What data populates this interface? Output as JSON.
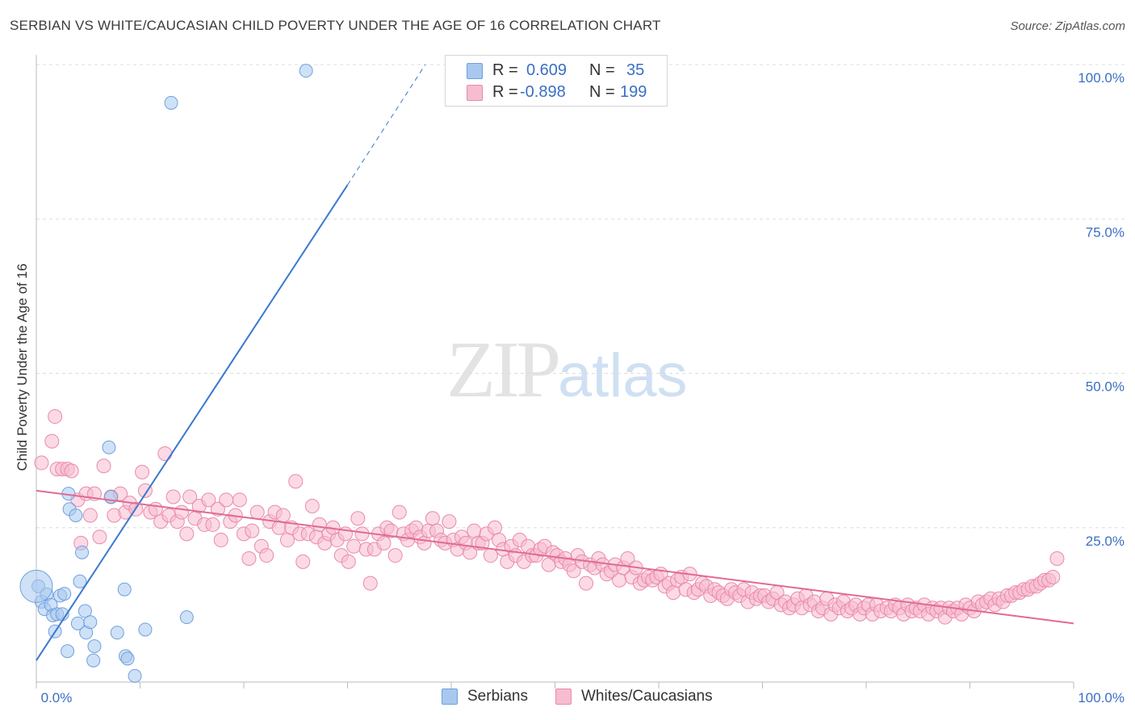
{
  "header": {
    "title": "SERBIAN VS WHITE/CAUCASIAN CHILD POVERTY UNDER THE AGE OF 16 CORRELATION CHART",
    "source": "Source: ZipAtlas.com"
  },
  "watermark": {
    "zip": "ZIP",
    "atlas": "atlas"
  },
  "legend": {
    "rows": [
      {
        "r_label": "R =",
        "r_value": "0.609",
        "n_label": "N =",
        "n_value": "35",
        "color": "#a8c8f0",
        "border": "#6fa0dc"
      },
      {
        "r_label": "R =",
        "r_value": "-0.898",
        "n_label": "N =",
        "n_value": "199",
        "color": "#f7bcd0",
        "border": "#e98aab"
      }
    ]
  },
  "bottom_legend": [
    {
      "label": "Serbians",
      "color": "#a8c8f0",
      "border": "#6fa0dc"
    },
    {
      "label": "Whites/Caucasians",
      "color": "#f7bcd0",
      "border": "#e98aab"
    }
  ],
  "colors": {
    "serbian_fill": "#a8c8f0",
    "serbian_stroke": "#6fa0dc",
    "serbian_line": "#3a78d0",
    "white_fill": "#f7bcd0",
    "white_stroke": "#e98aab",
    "white_line": "#e06a95",
    "tick_label": "#3a6fc4",
    "grid": "#dddddd"
  },
  "chart_data": {
    "type": "scatter",
    "title": "SERBIAN VS WHITE/CAUCASIAN CHILD POVERTY UNDER THE AGE OF 16 CORRELATION CHART",
    "xlabel": "",
    "ylabel": "Child Poverty Under the Age of 16",
    "xlim": [
      0,
      100
    ],
    "ylim": [
      0,
      100
    ],
    "x_tick_labels": [
      "0.0%",
      "100.0%"
    ],
    "y_tick_labels": [
      "25.0%",
      "50.0%",
      "75.0%",
      "100.0%"
    ],
    "y_ticks": [
      25,
      50,
      75,
      100
    ],
    "grid": "horizontal dashed",
    "legend_placement": "top-center",
    "series": [
      {
        "name": "Serbians",
        "r": 0.609,
        "n": 35,
        "trend": {
          "x0": 0,
          "y0": 3.5,
          "x1": 30,
          "y1": 80.5,
          "dashed_to": [
            37.5,
            100
          ]
        },
        "points": [
          [
            0.2,
            15.5
          ],
          [
            0.5,
            13.0
          ],
          [
            0.8,
            11.8
          ],
          [
            1.0,
            14.2
          ],
          [
            1.4,
            12.5
          ],
          [
            1.6,
            10.8
          ],
          [
            2.0,
            11.0
          ],
          [
            2.3,
            14.0
          ],
          [
            1.8,
            8.2
          ],
          [
            2.7,
            14.3
          ],
          [
            2.5,
            11.0
          ],
          [
            3.0,
            5.0
          ],
          [
            3.1,
            30.5
          ],
          [
            3.2,
            28.0
          ],
          [
            3.8,
            27.0
          ],
          [
            4.0,
            9.5
          ],
          [
            4.2,
            16.3
          ],
          [
            4.4,
            21.0
          ],
          [
            4.7,
            11.5
          ],
          [
            4.8,
            8.0
          ],
          [
            5.2,
            9.7
          ],
          [
            5.5,
            3.5
          ],
          [
            5.6,
            5.8
          ],
          [
            7.0,
            38.0
          ],
          [
            7.2,
            30.0
          ],
          [
            7.8,
            8.0
          ],
          [
            8.5,
            15.0
          ],
          [
            8.6,
            4.2
          ],
          [
            8.8,
            3.8
          ],
          [
            9.5,
            1.0
          ],
          [
            10.5,
            8.5
          ],
          [
            13.0,
            93.8
          ],
          [
            14.5,
            10.5
          ],
          [
            26.0,
            99.0
          ],
          [
            0.0,
            15.5
          ]
        ]
      },
      {
        "name": "Whites/Caucasians",
        "r": -0.898,
        "n": 199,
        "trend": {
          "x0": 0,
          "y0": 31.0,
          "x1": 100,
          "y1": 9.5
        },
        "points": [
          [
            0.5,
            35.5
          ],
          [
            1.5,
            39.0
          ],
          [
            1.8,
            43.0
          ],
          [
            2.0,
            34.5
          ],
          [
            2.5,
            34.5
          ],
          [
            3.0,
            34.5
          ],
          [
            3.4,
            34.2
          ],
          [
            4.0,
            29.5
          ],
          [
            4.3,
            22.5
          ],
          [
            4.8,
            30.5
          ],
          [
            5.2,
            27.0
          ],
          [
            5.6,
            30.5
          ],
          [
            6.1,
            23.5
          ],
          [
            6.5,
            35.0
          ],
          [
            7.2,
            30.0
          ],
          [
            7.5,
            27.0
          ],
          [
            8.1,
            30.5
          ],
          [
            8.6,
            27.5
          ],
          [
            9.0,
            29.0
          ],
          [
            9.6,
            28.0
          ],
          [
            10.2,
            34.0
          ],
          [
            10.5,
            31.0
          ],
          [
            11.0,
            27.5
          ],
          [
            11.5,
            28.0
          ],
          [
            12.0,
            26.0
          ],
          [
            12.4,
            37.0
          ],
          [
            12.8,
            27.0
          ],
          [
            13.2,
            30.0
          ],
          [
            13.6,
            26.0
          ],
          [
            14.0,
            27.5
          ],
          [
            14.5,
            24.0
          ],
          [
            14.8,
            30.0
          ],
          [
            15.3,
            26.5
          ],
          [
            15.7,
            28.5
          ],
          [
            16.2,
            25.5
          ],
          [
            16.6,
            29.5
          ],
          [
            17.0,
            25.5
          ],
          [
            17.5,
            28.0
          ],
          [
            17.8,
            23.0
          ],
          [
            18.3,
            29.5
          ],
          [
            18.7,
            26.0
          ],
          [
            19.2,
            27.0
          ],
          [
            19.6,
            29.5
          ],
          [
            20.0,
            24.0
          ],
          [
            20.5,
            20.0
          ],
          [
            20.8,
            24.5
          ],
          [
            21.3,
            27.5
          ],
          [
            21.7,
            22.0
          ],
          [
            22.2,
            20.5
          ],
          [
            22.5,
            26.0
          ],
          [
            23.0,
            27.5
          ],
          [
            23.4,
            25.0
          ],
          [
            23.8,
            27.0
          ],
          [
            24.2,
            23.0
          ],
          [
            24.6,
            25.0
          ],
          [
            25.0,
            32.5
          ],
          [
            25.4,
            24.0
          ],
          [
            25.7,
            19.5
          ],
          [
            26.2,
            24.0
          ],
          [
            26.6,
            28.5
          ],
          [
            27.0,
            23.5
          ],
          [
            27.3,
            25.5
          ],
          [
            27.8,
            22.5
          ],
          [
            28.2,
            24.0
          ],
          [
            28.6,
            25.0
          ],
          [
            29.0,
            23.0
          ],
          [
            29.4,
            20.5
          ],
          [
            29.8,
            24.0
          ],
          [
            30.1,
            19.5
          ],
          [
            30.6,
            22.0
          ],
          [
            31.0,
            26.5
          ],
          [
            31.4,
            24.0
          ],
          [
            31.8,
            21.5
          ],
          [
            32.2,
            16.0
          ],
          [
            32.6,
            21.5
          ],
          [
            33.0,
            24.0
          ],
          [
            33.5,
            22.5
          ],
          [
            33.8,
            25.0
          ],
          [
            34.2,
            24.5
          ],
          [
            34.6,
            20.5
          ],
          [
            35.0,
            27.5
          ],
          [
            35.4,
            24.0
          ],
          [
            35.8,
            23.0
          ],
          [
            36.2,
            24.5
          ],
          [
            36.6,
            25.0
          ],
          [
            37.0,
            23.5
          ],
          [
            37.4,
            22.5
          ],
          [
            37.8,
            24.5
          ],
          [
            38.2,
            26.5
          ],
          [
            38.6,
            24.5
          ],
          [
            39.0,
            23.0
          ],
          [
            39.4,
            22.5
          ],
          [
            39.8,
            26.0
          ],
          [
            40.2,
            23.0
          ],
          [
            40.6,
            21.5
          ],
          [
            41.0,
            23.5
          ],
          [
            41.4,
            22.5
          ],
          [
            41.8,
            21.0
          ],
          [
            42.2,
            24.5
          ],
          [
            42.6,
            22.5
          ],
          [
            43.0,
            22.5
          ],
          [
            43.4,
            24.0
          ],
          [
            43.8,
            20.5
          ],
          [
            44.2,
            25.0
          ],
          [
            44.6,
            23.0
          ],
          [
            45.0,
            21.5
          ],
          [
            45.4,
            19.5
          ],
          [
            45.8,
            22.0
          ],
          [
            46.2,
            20.5
          ],
          [
            46.6,
            23.0
          ],
          [
            47.0,
            19.5
          ],
          [
            47.4,
            22.0
          ],
          [
            47.8,
            20.5
          ],
          [
            48.2,
            20.5
          ],
          [
            48.6,
            21.5
          ],
          [
            49.0,
            22.0
          ],
          [
            49.4,
            19.0
          ],
          [
            49.8,
            21.0
          ],
          [
            50.2,
            20.5
          ],
          [
            50.6,
            19.5
          ],
          [
            51.0,
            20.0
          ],
          [
            51.4,
            19.0
          ],
          [
            51.8,
            18.0
          ],
          [
            52.2,
            20.5
          ],
          [
            52.6,
            19.5
          ],
          [
            53.0,
            16.0
          ],
          [
            53.4,
            19.0
          ],
          [
            53.8,
            18.5
          ],
          [
            54.2,
            20.0
          ],
          [
            54.6,
            19.0
          ],
          [
            55.0,
            17.5
          ],
          [
            55.4,
            18.0
          ],
          [
            55.8,
            19.0
          ],
          [
            56.2,
            16.5
          ],
          [
            56.6,
            18.5
          ],
          [
            57.0,
            20.0
          ],
          [
            57.4,
            17.0
          ],
          [
            57.8,
            18.5
          ],
          [
            58.2,
            16.0
          ],
          [
            58.6,
            16.5
          ],
          [
            59.0,
            17.0
          ],
          [
            59.4,
            16.5
          ],
          [
            59.8,
            17.0
          ],
          [
            60.2,
            17.5
          ],
          [
            60.6,
            15.5
          ],
          [
            61.0,
            16.0
          ],
          [
            61.4,
            14.5
          ],
          [
            61.8,
            16.5
          ],
          [
            62.2,
            17.0
          ],
          [
            62.6,
            15.0
          ],
          [
            63.0,
            17.5
          ],
          [
            63.4,
            14.5
          ],
          [
            63.8,
            15.0
          ],
          [
            64.2,
            16.0
          ],
          [
            64.6,
            15.5
          ],
          [
            65.0,
            14.0
          ],
          [
            65.4,
            15.0
          ],
          [
            65.8,
            14.5
          ],
          [
            66.2,
            14.0
          ],
          [
            66.6,
            13.5
          ],
          [
            67.0,
            15.0
          ],
          [
            67.4,
            14.5
          ],
          [
            67.8,
            14.0
          ],
          [
            68.2,
            15.0
          ],
          [
            68.6,
            13.0
          ],
          [
            69.0,
            14.5
          ],
          [
            69.4,
            13.5
          ],
          [
            69.8,
            14.0
          ],
          [
            70.2,
            14.0
          ],
          [
            70.6,
            13.0
          ],
          [
            71.0,
            13.5
          ],
          [
            71.4,
            14.5
          ],
          [
            71.8,
            12.5
          ],
          [
            72.2,
            13.0
          ],
          [
            72.6,
            12.0
          ],
          [
            73.0,
            12.5
          ],
          [
            73.4,
            13.5
          ],
          [
            73.8,
            12.0
          ],
          [
            74.2,
            14.0
          ],
          [
            74.6,
            12.5
          ],
          [
            75.0,
            13.0
          ],
          [
            75.4,
            11.5
          ],
          [
            75.8,
            12.0
          ],
          [
            76.2,
            13.5
          ],
          [
            76.6,
            11.0
          ],
          [
            77.0,
            12.5
          ],
          [
            77.4,
            12.0
          ],
          [
            77.8,
            13.0
          ],
          [
            78.2,
            11.5
          ],
          [
            78.6,
            12.0
          ],
          [
            79.0,
            12.5
          ],
          [
            79.4,
            11.0
          ],
          [
            79.8,
            12.0
          ],
          [
            80.2,
            12.5
          ],
          [
            80.6,
            11.0
          ],
          [
            81.0,
            12.5
          ],
          [
            81.4,
            11.5
          ]
        ]
      }
    ]
  },
  "chart_extra_white_points": [
    [
      82.0,
      12.0
    ],
    [
      82.4,
      11.5
    ],
    [
      82.8,
      12.5
    ],
    [
      83.2,
      12.0
    ],
    [
      83.6,
      11.0
    ],
    [
      84.0,
      12.5
    ],
    [
      84.4,
      11.5
    ],
    [
      84.8,
      12.0
    ],
    [
      85.2,
      11.5
    ],
    [
      85.6,
      12.5
    ],
    [
      86.0,
      11.0
    ],
    [
      86.4,
      12.0
    ],
    [
      86.8,
      11.5
    ],
    [
      87.2,
      12.0
    ],
    [
      87.6,
      10.5
    ],
    [
      88.0,
      12.0
    ],
    [
      88.4,
      11.5
    ],
    [
      88.8,
      12.0
    ],
    [
      89.2,
      11.0
    ],
    [
      89.6,
      12.5
    ],
    [
      90.0,
      12.0
    ],
    [
      90.4,
      11.5
    ],
    [
      90.8,
      13.0
    ],
    [
      91.2,
      12.5
    ],
    [
      91.6,
      13.0
    ],
    [
      92.0,
      13.5
    ],
    [
      92.4,
      12.5
    ],
    [
      92.8,
      13.5
    ],
    [
      93.2,
      13.0
    ],
    [
      93.6,
      14.0
    ],
    [
      94.0,
      14.0
    ],
    [
      94.4,
      14.5
    ],
    [
      94.8,
      14.5
    ],
    [
      95.2,
      15.0
    ],
    [
      95.6,
      15.0
    ],
    [
      96.0,
      15.5
    ],
    [
      96.4,
      15.5
    ],
    [
      96.8,
      16.0
    ],
    [
      97.2,
      16.5
    ],
    [
      97.6,
      16.5
    ],
    [
      98.0,
      17.0
    ],
    [
      98.4,
      20.0
    ]
  ]
}
